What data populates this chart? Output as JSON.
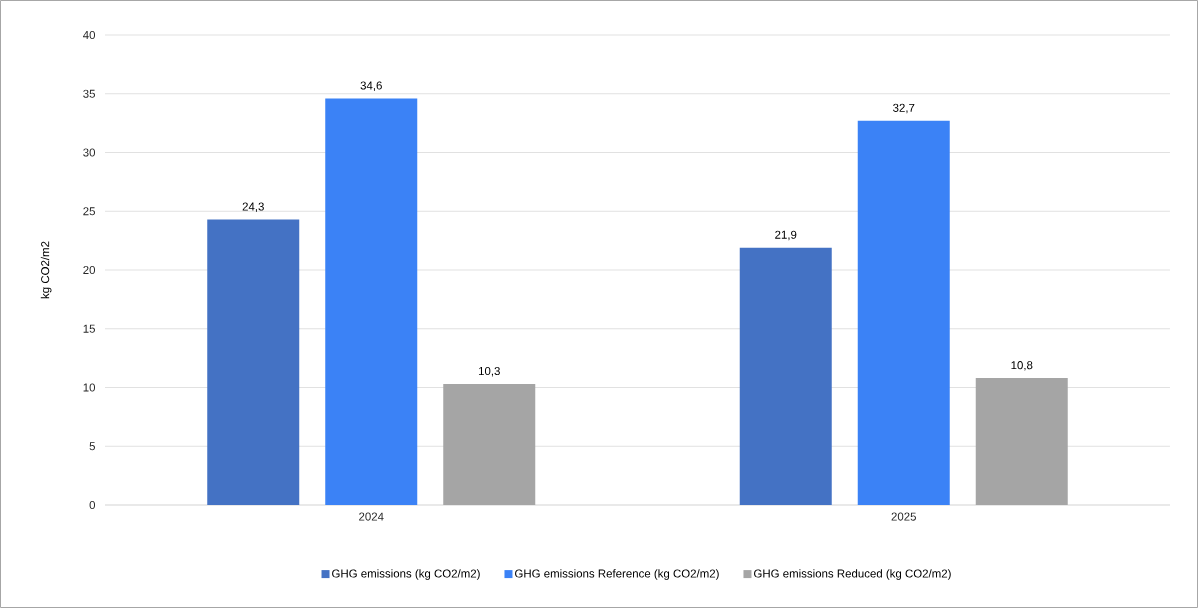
{
  "chart_data": {
    "type": "bar",
    "ylabel": "kg CO2/m2",
    "categories": [
      "2024",
      "2025"
    ],
    "series": [
      {
        "name": "GHG emissions (kg CO2/m2)",
        "color": "#4472c4",
        "values": [
          24.3,
          21.9
        ],
        "value_labels": [
          "24,3",
          "21,9"
        ]
      },
      {
        "name": "GHG emissions Reference (kg CO2/m2)",
        "color": "#3b82f6",
        "values": [
          34.6,
          32.7
        ],
        "value_labels": [
          "34,6",
          "32,7"
        ]
      },
      {
        "name": "GHG emissions Reduced (kg CO2/m2)",
        "color": "#a5a5a5",
        "values": [
          10.3,
          10.8
        ],
        "value_labels": [
          "10,3",
          "10,8"
        ]
      }
    ],
    "ylim": [
      0,
      40
    ],
    "yticks": [
      0,
      5,
      10,
      15,
      20,
      25,
      30,
      35,
      40
    ],
    "grid": "y",
    "legend": "bottom"
  }
}
